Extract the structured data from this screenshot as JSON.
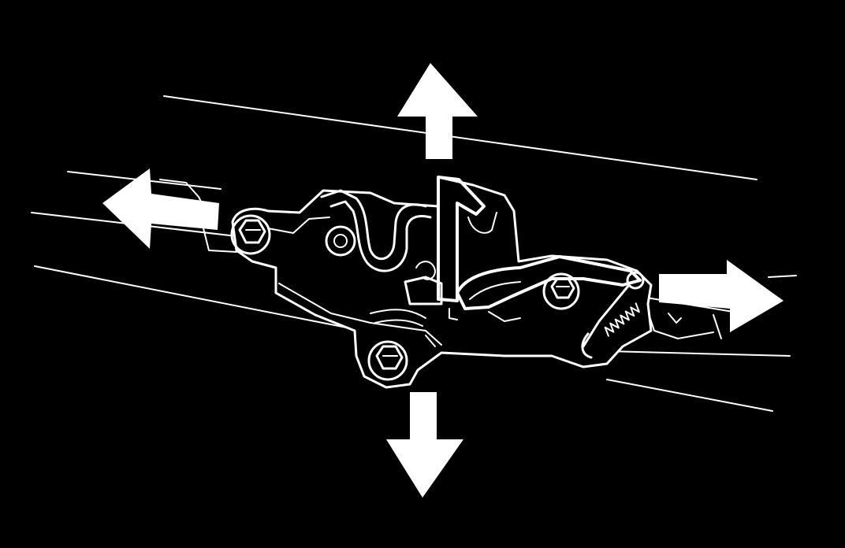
{
  "diagram": {
    "subject": "hood-latch-assembly",
    "background_color": "#000000",
    "line_color": "#ffffff",
    "arrows": [
      {
        "name": "arrow-up",
        "direction": "up"
      },
      {
        "name": "arrow-down",
        "direction": "down"
      },
      {
        "name": "arrow-left",
        "direction": "left"
      },
      {
        "name": "arrow-right",
        "direction": "right"
      }
    ],
    "icons": [
      "arrow-up-icon",
      "arrow-down-icon",
      "arrow-left-icon",
      "arrow-right-icon",
      "bolt-icon",
      "spring-icon"
    ]
  }
}
